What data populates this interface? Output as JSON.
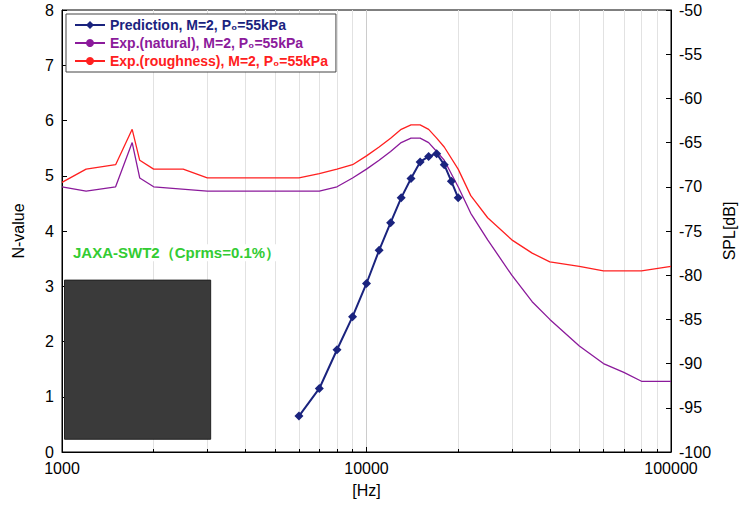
{
  "chart_data": {
    "type": "line",
    "x_label": "[Hz]",
    "y_label": "N-value",
    "y2_label": "SPL[dB]",
    "log": "x",
    "grid": true,
    "legend": "upper left",
    "xlim": [
      1000,
      100000
    ],
    "xticks": [
      1000,
      10000,
      100000
    ],
    "ylim": [
      0,
      8
    ],
    "yticks": [
      0,
      1,
      2,
      3,
      4,
      5,
      6,
      7,
      8
    ],
    "y2lim": [
      -100,
      -50
    ],
    "y2ticks": [
      -100,
      -95,
      -90,
      -85,
      -80,
      -75,
      -70,
      -65,
      -60,
      -55,
      -50
    ],
    "annotations": [
      {
        "text": "JAXA-SWT2（Cprms=0.1%）",
        "color": "#33cc33"
      }
    ],
    "series": [
      {
        "name": "Prediction, M=2, P₀=55kPa",
        "color": "#1a237e",
        "marker": "diamond",
        "line_style": "solid",
        "x": [
          6000,
          7000,
          8000,
          9000,
          10000,
          11000,
          12000,
          13000,
          14000,
          15000,
          16000,
          17000,
          18000,
          19000,
          20000
        ],
        "values": [
          0.65,
          1.15,
          1.85,
          2.45,
          3.05,
          3.65,
          4.15,
          4.6,
          4.95,
          5.25,
          5.35,
          5.4,
          5.2,
          4.9,
          4.6
        ]
      },
      {
        "name": "Exp.(natural), M=2, P₀=55kPa",
        "color": "#8b1a9b",
        "marker": "none",
        "line_style": "solid",
        "axis": "y2",
        "x": [
          1000,
          1200,
          1500,
          1700,
          1800,
          2000,
          3000,
          4000,
          5000,
          6000,
          7000,
          8000,
          9000,
          10000,
          11000,
          12000,
          13000,
          14000,
          15000,
          16000,
          17000,
          18000,
          20000,
          22000,
          25000,
          30000,
          35000,
          40000,
          50000,
          60000,
          70000,
          80000,
          100000
        ],
        "values": [
          -70,
          -70.5,
          -70,
          -65,
          -69,
          -70,
          -70.5,
          -70.5,
          -70.5,
          -70.5,
          -70.5,
          -70,
          -69,
          -68,
          -67,
          -66,
          -65,
          -64.5,
          -64.5,
          -65,
          -66,
          -67,
          -70,
          -73,
          -76,
          -80,
          -83,
          -85,
          -88,
          -90,
          -91,
          -92,
          -92
        ]
      },
      {
        "name": "Exp.(roughness), M=2, P₀=55kPa",
        "color": "#ff2020",
        "marker": "none",
        "line_style": "solid",
        "axis": "y2",
        "x": [
          1000,
          1200,
          1500,
          1700,
          1800,
          2000,
          2500,
          3000,
          4000,
          5000,
          6000,
          7000,
          8000,
          9000,
          10000,
          11000,
          12000,
          13000,
          14000,
          15000,
          16000,
          17000,
          18000,
          20000,
          22000,
          25000,
          30000,
          35000,
          40000,
          50000,
          60000,
          70000,
          80000,
          100000
        ],
        "values": [
          -69.5,
          -68,
          -67.5,
          -63.5,
          -67,
          -68,
          -68,
          -69,
          -69,
          -69,
          -69,
          -68.5,
          -68,
          -67.5,
          -66.5,
          -65.5,
          -64.5,
          -63.5,
          -63,
          -63,
          -63.5,
          -64.5,
          -65.5,
          -68,
          -71,
          -73.5,
          -76,
          -77.5,
          -78.5,
          -79,
          -79.5,
          -79.5,
          -79.5,
          -79
        ]
      }
    ]
  }
}
